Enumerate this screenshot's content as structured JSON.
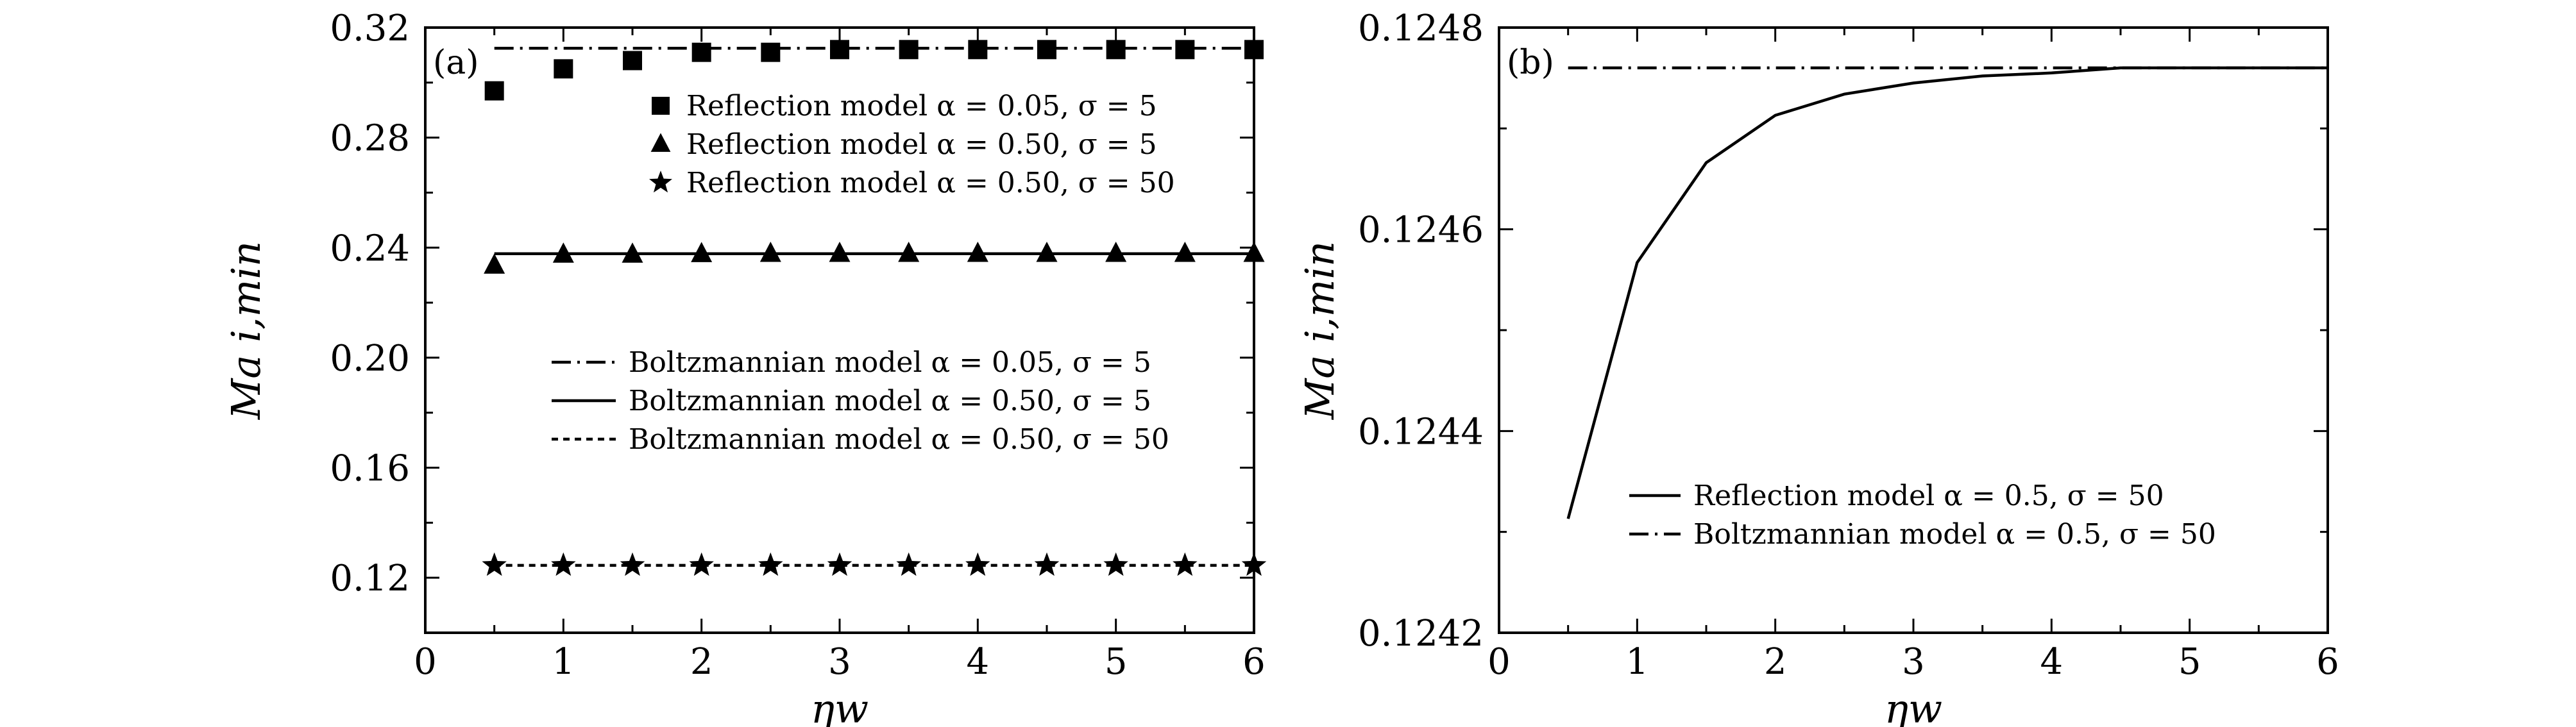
{
  "chart_data": [
    {
      "panel": "(a)",
      "type": "line+scatter",
      "xlabel": "ηw",
      "ylabel": "Ma i,min",
      "xlim": [
        0,
        6
      ],
      "ylim": [
        0.1,
        0.32
      ],
      "xticks": [
        "0",
        "1",
        "2",
        "3",
        "4",
        "5",
        "6"
      ],
      "yticks": [
        "0.12",
        "0.16",
        "0.20",
        "0.24",
        "0.28",
        "0.32"
      ],
      "grid": false,
      "legend_upper": [
        {
          "name": "Reflection model α = 0.05, σ = 5",
          "marker": "square"
        },
        {
          "name": "Reflection model α = 0.50, σ = 5",
          "marker": "triangle"
        },
        {
          "name": "Reflection model α = 0.50, σ = 50",
          "marker": "star"
        }
      ],
      "legend_lower": [
        {
          "name": "Boltzmannian model α = 0.05, σ = 5",
          "dash": "dashdot"
        },
        {
          "name": "Boltzmannian model α = 0.50, σ = 5",
          "dash": "solid"
        },
        {
          "name": "Boltzmannian model α = 0.50, σ = 50",
          "dash": "dotted"
        }
      ],
      "x": [
        0.5,
        1.0,
        1.5,
        2.0,
        2.5,
        3.0,
        3.5,
        4.0,
        4.5,
        5.0,
        5.5,
        6.0
      ],
      "scatter_series": [
        {
          "name": "Reflection model α = 0.05, σ = 5",
          "marker": "square",
          "values": [
            0.297,
            0.305,
            0.308,
            0.311,
            0.311,
            0.312,
            0.312,
            0.312,
            0.312,
            0.312,
            0.312,
            0.312
          ]
        },
        {
          "name": "Reflection model α = 0.50, σ = 5",
          "marker": "triangle",
          "values": [
            0.2335,
            0.2375,
            0.2375,
            0.2377,
            0.2378,
            0.2378,
            0.2378,
            0.2378,
            0.2378,
            0.2378,
            0.2378,
            0.2378
          ]
        },
        {
          "name": "Reflection model α = 0.50, σ = 50",
          "marker": "star",
          "values": [
            0.1245,
            0.1245,
            0.1245,
            0.1245,
            0.1245,
            0.1245,
            0.1245,
            0.1245,
            0.1245,
            0.1245,
            0.1245,
            0.1245
          ]
        }
      ],
      "line_series": [
        {
          "name": "Boltzmannian model α = 0.05, σ = 5",
          "dash": "dashdot",
          "x": [
            0.5,
            6.0
          ],
          "values": [
            0.3125,
            0.3125
          ]
        },
        {
          "name": "Boltzmannian model α = 0.50, σ = 5",
          "dash": "solid",
          "x": [
            0.5,
            6.0
          ],
          "values": [
            0.2378,
            0.2378
          ]
        },
        {
          "name": "Boltzmannian model α = 0.50, σ = 50",
          "dash": "dotted",
          "x": [
            0.5,
            6.0
          ],
          "values": [
            0.1245,
            0.1245
          ]
        }
      ]
    },
    {
      "panel": "(b)",
      "type": "line",
      "xlabel": "ηw",
      "ylabel": "Ma i,min",
      "xlim": [
        0,
        6
      ],
      "ylim": [
        0.1242,
        0.1248
      ],
      "xticks": [
        "0",
        "1",
        "2",
        "3",
        "4",
        "5",
        "6"
      ],
      "yticks": [
        "0.1242",
        "0.1244",
        "0.1246",
        "0.1248"
      ],
      "grid": false,
      "legend": [
        {
          "name": "Reflection model α = 0.5, σ = 50",
          "dash": "solid"
        },
        {
          "name": "Boltzmannian model α = 0.5, σ = 50",
          "dash": "dashdot"
        }
      ],
      "series": [
        {
          "name": "Reflection model α = 0.5, σ = 50",
          "dash": "solid",
          "x": [
            0.5,
            1.0,
            1.5,
            2.0,
            2.5,
            3.0,
            3.5,
            4.0,
            4.5,
            5.0,
            5.5,
            6.0
          ],
          "values": [
            0.124313,
            0.124567,
            0.124666,
            0.124713,
            0.124734,
            0.124745,
            0.124752,
            0.124755,
            0.12476,
            0.12476,
            0.12476,
            0.12476
          ]
        },
        {
          "name": "Boltzmannian model α = 0.5, σ = 50",
          "dash": "dashdot",
          "x": [
            0.5,
            6.0
          ],
          "values": [
            0.12476,
            0.12476
          ]
        }
      ]
    }
  ]
}
